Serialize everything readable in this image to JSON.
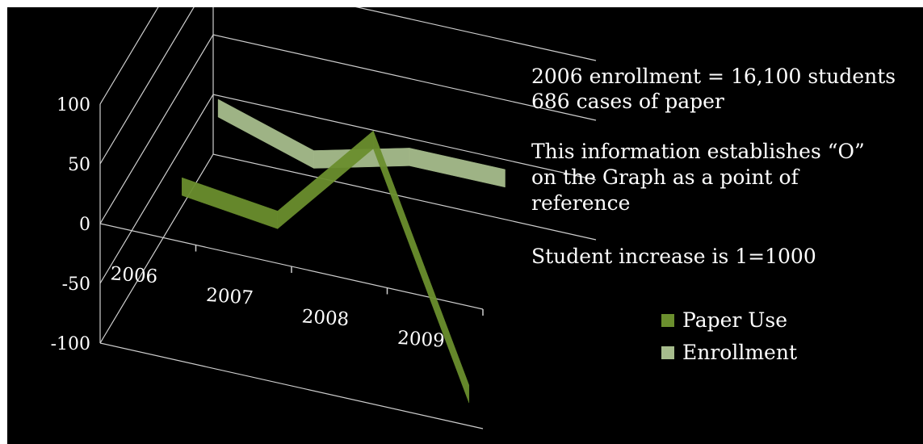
{
  "chart_data": {
    "type": "line",
    "style": "3d-ribbon",
    "categories": [
      "2006",
      "2007",
      "2008",
      "2009"
    ],
    "y_ticks": [
      "100",
      "50",
      "0",
      "-50",
      "-100"
    ],
    "ylim": [
      -100,
      100
    ],
    "grid": true,
    "legend_position": "right",
    "series": [
      {
        "name": "Paper Use",
        "values": [
          0,
          -10,
          75,
          -120
        ],
        "color": "#6b8f2e"
      },
      {
        "name": "Enrollment",
        "values": [
          15,
          -10,
          10,
          10
        ],
        "color": "#a7bd8d"
      }
    ]
  },
  "notes": {
    "enrollment_line": "2006  enrollment = 16,100 students",
    "paper_line": "686 cases of paper",
    "reference_line1": "This information establishes  “O”",
    "reference_line2": "on the Graph as a point of",
    "reference_line3": "reference",
    "increase_line": "Student increase is 1=1000"
  },
  "colors": {
    "background": "#000000",
    "gridline": "#cfcfcf",
    "text": "#ffffff"
  }
}
